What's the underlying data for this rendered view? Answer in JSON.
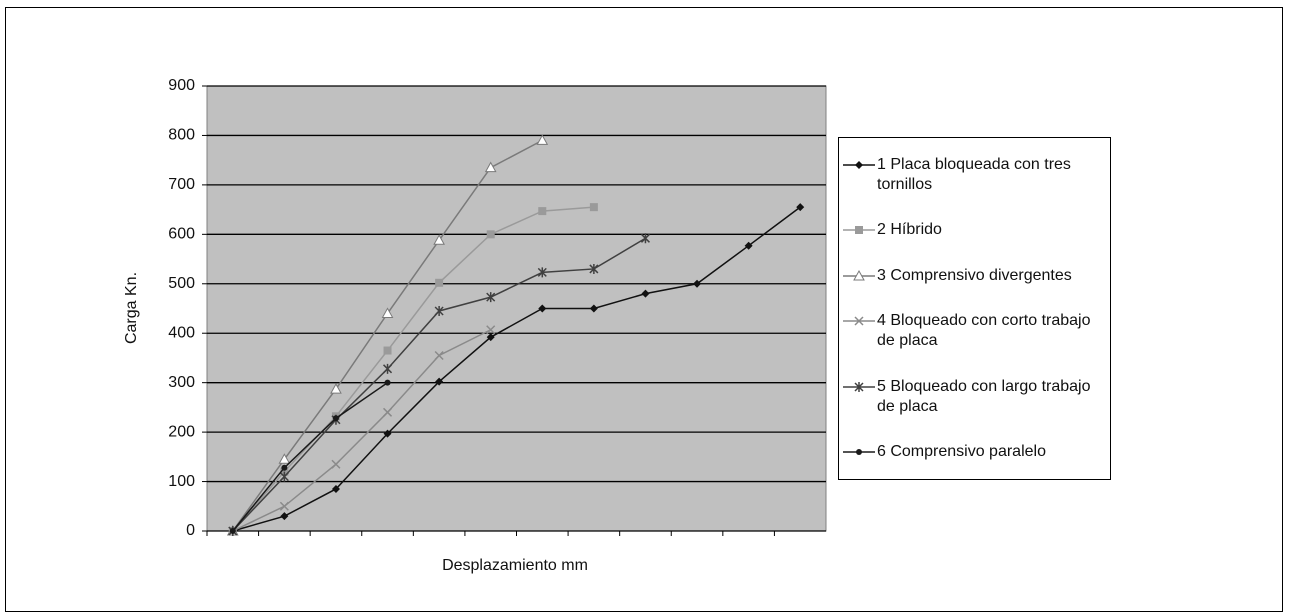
{
  "chart_data": {
    "type": "line",
    "x_label": "Desplazamiento mm",
    "y_label": "Carga Kn.",
    "categories": [
      null,
      null,
      null,
      null,
      null,
      null,
      null,
      null,
      null,
      null,
      null,
      null
    ],
    "ylim": [
      0,
      900
    ],
    "yticks": [
      0,
      100,
      200,
      300,
      400,
      500,
      600,
      700,
      800,
      900
    ],
    "grid": true,
    "legend": "right",
    "series": [
      {
        "name": "1 Placa bloqueada con tres tornillos",
        "color": "#111111",
        "marker": "diamond",
        "values": [
          0,
          30,
          85,
          197,
          302,
          392,
          450,
          450,
          480,
          500,
          577,
          655
        ]
      },
      {
        "name": "2 Híbrido",
        "color": "#9a9a9a",
        "marker": "square",
        "values": [
          0,
          120,
          232,
          365,
          502,
          600,
          647,
          655,
          null,
          null,
          null,
          null
        ]
      },
      {
        "name": "3 Comprensivo  divergentes",
        "color": "#7a7a7a",
        "marker": "triangle",
        "values": [
          0,
          145,
          287,
          440,
          588,
          735,
          790,
          null,
          null,
          null,
          null,
          null
        ]
      },
      {
        "name": "4 Bloqueado con corto trabajo de placa",
        "color": "#8a8a8a",
        "marker": "x",
        "values": [
          0,
          50,
          135,
          240,
          355,
          407,
          null,
          null,
          null,
          null,
          null,
          null
        ]
      },
      {
        "name": "5 Bloqueado con largo trabajo de placa",
        "color": "#404040",
        "marker": "star",
        "values": [
          0,
          110,
          225,
          328,
          445,
          473,
          523,
          530,
          592,
          null,
          null,
          null
        ]
      },
      {
        "name": "6 Comprensivo paralelo",
        "color": "#1a1a1a",
        "marker": "circle",
        "values": [
          0,
          128,
          228,
          300,
          null,
          null,
          null,
          null,
          null,
          null,
          null,
          null
        ]
      }
    ]
  }
}
